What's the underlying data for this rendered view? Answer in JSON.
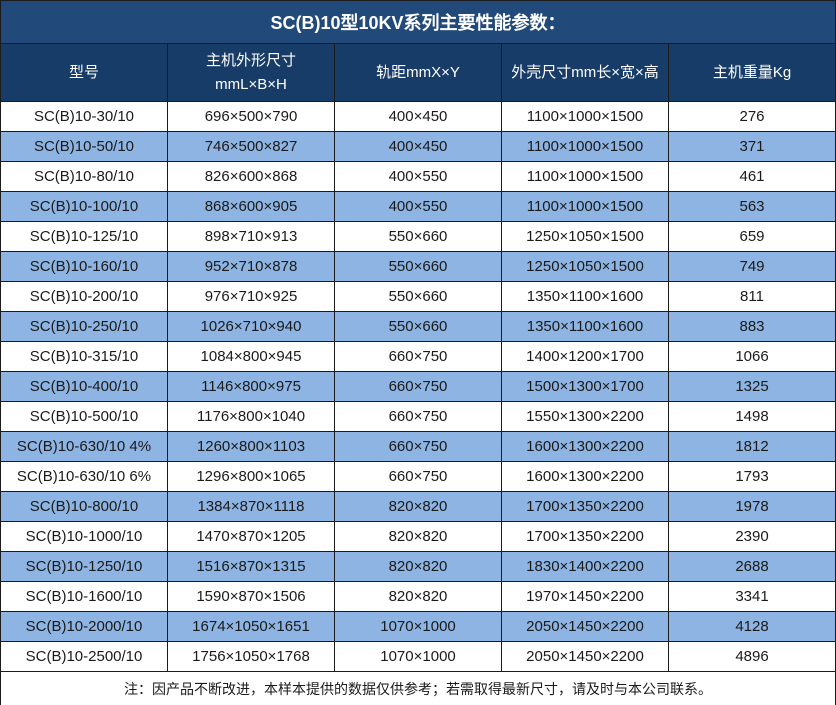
{
  "title": "SC(B)10型10KV系列主要性能参数：",
  "colors": {
    "title_bg": "#21497A",
    "header_bg": "#173C68",
    "stripe_bg": "#8DB4E2",
    "border_color": "#1b1b1b",
    "header_text": "#ffffff",
    "body_text": "#1a1a1a"
  },
  "chart_data": {
    "type": "table",
    "title": "SC(B)10型10KV系列主要性能参数：",
    "columns": [
      "型号",
      "主机外形尺寸 mmL×B×H",
      "轨距mmX×Y",
      "外壳尺寸mm长×宽×高",
      "主机重量Kg"
    ],
    "rows_ref": "see table.rows"
  },
  "table": {
    "columns": [
      {
        "label": "型号"
      },
      {
        "label": "主机外形尺寸",
        "sub": "mmL×B×H"
      },
      {
        "label": "轨距mmX×Y"
      },
      {
        "label": "外壳尺寸mm长×宽×高"
      },
      {
        "label": "主机重量Kg"
      }
    ],
    "rows": [
      [
        "SC(B)10-30/10",
        "696×500×790",
        "400×450",
        "1100×1000×1500",
        "276"
      ],
      [
        "SC(B)10-50/10",
        "746×500×827",
        "400×450",
        "1100×1000×1500",
        "371"
      ],
      [
        "SC(B)10-80/10",
        "826×600×868",
        "400×550",
        "1100×1000×1500",
        "461"
      ],
      [
        "SC(B)10-100/10",
        "868×600×905",
        "400×550",
        "1100×1000×1500",
        "563"
      ],
      [
        "SC(B)10-125/10",
        "898×710×913",
        "550×660",
        "1250×1050×1500",
        "659"
      ],
      [
        "SC(B)10-160/10",
        "952×710×878",
        "550×660",
        "1250×1050×1500",
        "749"
      ],
      [
        "SC(B)10-200/10",
        "976×710×925",
        "550×660",
        "1350×1100×1600",
        "811"
      ],
      [
        "SC(B)10-250/10",
        "1026×710×940",
        "550×660",
        "1350×1100×1600",
        "883"
      ],
      [
        "SC(B)10-315/10",
        "1084×800×945",
        "660×750",
        "1400×1200×1700",
        "1066"
      ],
      [
        "SC(B)10-400/10",
        "1146×800×975",
        "660×750",
        "1500×1300×1700",
        "1325"
      ],
      [
        "SC(B)10-500/10",
        "1176×800×1040",
        "660×750",
        "1550×1300×2200",
        "1498"
      ],
      [
        "SC(B)10-630/10 4%",
        "1260×800×1103",
        "660×750",
        "1600×1300×2200",
        "1812"
      ],
      [
        "SC(B)10-630/10 6%",
        "1296×800×1065",
        "660×750",
        "1600×1300×2200",
        "1793"
      ],
      [
        "SC(B)10-800/10",
        "1384×870×1118",
        "820×820",
        "1700×1350×2200",
        "1978"
      ],
      [
        "SC(B)10-1000/10",
        "1470×870×1205",
        "820×820",
        "1700×1350×2200",
        "2390"
      ],
      [
        "SC(B)10-1250/10",
        "1516×870×1315",
        "820×820",
        "1830×1400×2200",
        "2688"
      ],
      [
        "SC(B)10-1600/10",
        "1590×870×1506",
        "820×820",
        "1970×1450×2200",
        "3341"
      ],
      [
        "SC(B)10-2000/10",
        "1674×1050×1651",
        "1070×1000",
        "2050×1450×2200",
        "4128"
      ],
      [
        "SC(B)10-2500/10",
        "1756×1050×1768",
        "1070×1000",
        "2050×1450×2200",
        "4896"
      ]
    ]
  },
  "note": "注：因产品不断改进，本样本提供的数据仅供参考；若需取得最新尺寸，请及时与本公司联系。"
}
